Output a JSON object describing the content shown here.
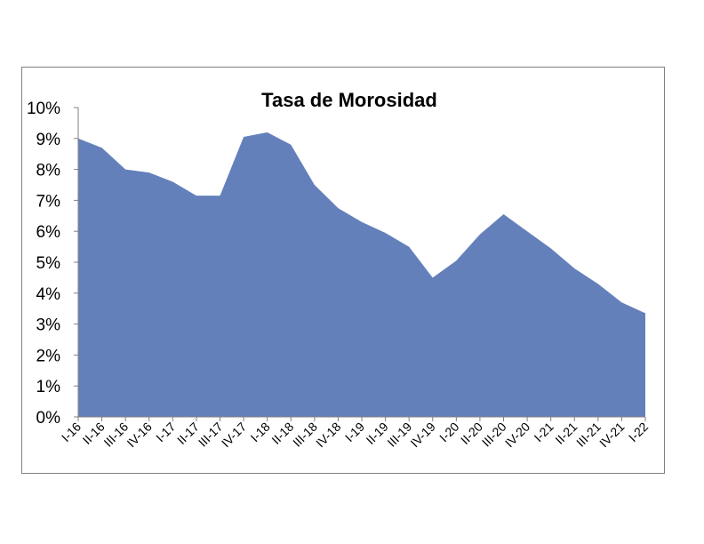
{
  "chart_data": {
    "type": "area",
    "title": "Tasa de Morosidad",
    "xlabel": "",
    "ylabel": "",
    "ylim": [
      0,
      10
    ],
    "y_ticks": [
      "0%",
      "1%",
      "2%",
      "3%",
      "4%",
      "5%",
      "6%",
      "7%",
      "8%",
      "9%",
      "10%"
    ],
    "categories": [
      "I-16",
      "II-16",
      "III-16",
      "IV-16",
      "I-17",
      "II-17",
      "III-17",
      "IV-17",
      "I-18",
      "II-18",
      "III-18",
      "IV-18",
      "I-19",
      "II-19",
      "III-19",
      "IV-19",
      "I-20",
      "II-20",
      "III-20",
      "IV-20",
      "I-21",
      "II-21",
      "III-21",
      "IV-21",
      "I-22"
    ],
    "series": [
      {
        "values": [
          9.0,
          8.7,
          8.0,
          7.9,
          7.6,
          7.15,
          7.15,
          9.05,
          9.2,
          8.8,
          7.5,
          6.75,
          6.3,
          5.95,
          5.5,
          4.5,
          5.05,
          5.9,
          6.55,
          6.0,
          5.45,
          4.8,
          4.3,
          3.7,
          3.35
        ]
      }
    ],
    "colors": {
      "fill": "#6480BB",
      "axis": "#808080"
    },
    "grid": false,
    "legend": "none"
  }
}
